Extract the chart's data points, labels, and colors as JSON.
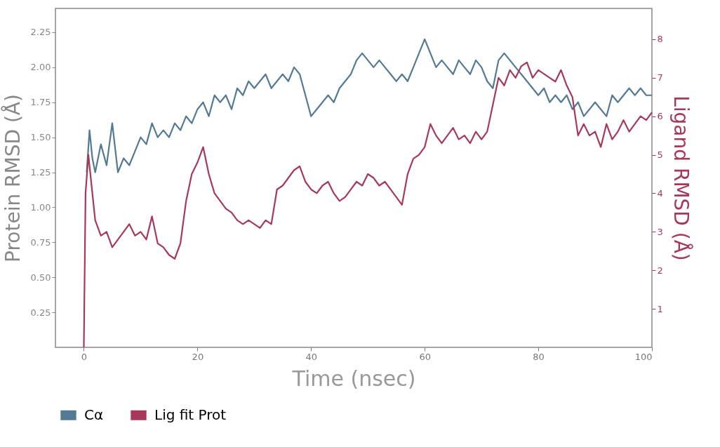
{
  "chart_data": {
    "type": "line",
    "xlabel": "Time (nsec)",
    "ylabel": "Protein RMSD (Å)",
    "y2label": "Ligand RMSD (Å)",
    "xlim": [
      -5,
      100
    ],
    "xticks": [
      0,
      20,
      40,
      60,
      80,
      100
    ],
    "ylim": [
      0,
      2.42
    ],
    "yticks": [
      0.25,
      {
        "value": 0.5,
        "label": "0.50"
      },
      0.75,
      {
        "value": 1,
        "label": "1.00"
      },
      1.25,
      {
        "value": 1.5,
        "label": "1.50"
      },
      1.75,
      {
        "value": 2,
        "label": "2.00"
      },
      2.25
    ],
    "y2lim": [
      0,
      8.8
    ],
    "y2ticks": [
      1,
      2,
      3,
      4,
      5,
      6,
      7,
      8
    ],
    "grid": false,
    "legend": "bottom",
    "marker": "none",
    "line_style": "solid",
    "series": [
      {
        "name": "Cα",
        "color": "#537a94",
        "x": [
          0.5,
          1,
          1.5,
          2,
          3,
          4,
          5,
          6,
          7,
          8,
          9,
          10,
          11,
          12,
          13,
          14,
          15,
          16,
          17,
          18,
          19,
          20,
          21,
          22,
          23,
          24,
          25,
          26,
          27,
          28,
          29,
          30,
          31,
          32,
          33,
          34,
          35,
          36,
          37,
          38,
          39,
          40,
          41,
          42,
          43,
          44,
          45,
          46,
          47,
          48,
          49,
          50,
          51,
          52,
          53,
          54,
          55,
          56,
          57,
          58,
          59,
          60,
          61,
          62,
          63,
          64,
          65,
          66,
          67,
          68,
          69,
          70,
          71,
          72,
          73,
          74,
          75,
          76,
          77,
          78,
          79,
          80,
          81,
          82,
          83,
          84,
          85,
          86,
          87,
          88,
          89,
          90,
          91,
          92,
          93,
          94,
          95,
          96,
          97,
          98,
          99,
          100
        ],
        "values": [
          1.25,
          1.55,
          1.35,
          1.25,
          1.45,
          1.3,
          1.6,
          1.25,
          1.35,
          1.3,
          1.4,
          1.5,
          1.45,
          1.6,
          1.5,
          1.55,
          1.5,
          1.6,
          1.55,
          1.65,
          1.6,
          1.7,
          1.75,
          1.65,
          1.8,
          1.75,
          1.8,
          1.7,
          1.85,
          1.8,
          1.9,
          1.85,
          1.9,
          1.95,
          1.85,
          1.9,
          1.95,
          1.9,
          2.0,
          1.95,
          1.8,
          1.65,
          1.7,
          1.75,
          1.8,
          1.75,
          1.85,
          1.9,
          1.95,
          2.05,
          2.1,
          2.05,
          2.0,
          2.05,
          2.0,
          1.95,
          1.9,
          1.95,
          1.9,
          2.0,
          2.1,
          2.2,
          2.1,
          2.0,
          2.05,
          2.0,
          1.95,
          2.05,
          2.0,
          1.95,
          2.05,
          2.0,
          1.9,
          1.85,
          2.05,
          2.1,
          2.05,
          2.0,
          1.95,
          1.9,
          1.85,
          1.8,
          1.85,
          1.75,
          1.8,
          1.75,
          1.8,
          1.7,
          1.75,
          1.65,
          1.7,
          1.75,
          1.7,
          1.65,
          1.8,
          1.75,
          1.8,
          1.85,
          1.8,
          1.85,
          1.8,
          1.8
        ]
      },
      {
        "name": "Lig fit Prot",
        "color": "#a8385a",
        "axis": "y2",
        "x": [
          0,
          0.3,
          0.8,
          1.5,
          2,
          3,
          4,
          5,
          6,
          7,
          8,
          9,
          10,
          11,
          12,
          13,
          14,
          15,
          16,
          17,
          18,
          19,
          20,
          21,
          22,
          23,
          24,
          25,
          26,
          27,
          28,
          29,
          30,
          31,
          32,
          33,
          34,
          35,
          36,
          37,
          38,
          39,
          40,
          41,
          42,
          43,
          44,
          45,
          46,
          47,
          48,
          49,
          50,
          51,
          52,
          53,
          54,
          55,
          56,
          57,
          58,
          59,
          60,
          61,
          62,
          63,
          64,
          65,
          66,
          67,
          68,
          69,
          70,
          71,
          72,
          73,
          74,
          75,
          76,
          77,
          78,
          79,
          80,
          81,
          82,
          83,
          84,
          85,
          86,
          87,
          88,
          89,
          90,
          91,
          92,
          93,
          94,
          95,
          96,
          97,
          98,
          99,
          100
        ],
        "values": [
          0,
          4.0,
          5.0,
          4.0,
          3.3,
          2.9,
          3.0,
          2.6,
          2.8,
          3.0,
          3.2,
          2.9,
          3.0,
          2.8,
          3.4,
          2.7,
          2.6,
          2.4,
          2.3,
          2.7,
          3.8,
          4.5,
          4.8,
          5.2,
          4.5,
          4.0,
          3.8,
          3.6,
          3.5,
          3.3,
          3.2,
          3.3,
          3.2,
          3.1,
          3.3,
          3.2,
          4.1,
          4.2,
          4.4,
          4.6,
          4.7,
          4.3,
          4.1,
          4.0,
          4.2,
          4.3,
          4.0,
          3.8,
          3.9,
          4.1,
          4.3,
          4.2,
          4.5,
          4.4,
          4.2,
          4.3,
          4.1,
          3.9,
          3.7,
          4.5,
          4.9,
          5.0,
          5.2,
          5.8,
          5.5,
          5.3,
          5.5,
          5.7,
          5.4,
          5.5,
          5.3,
          5.6,
          5.4,
          5.6,
          6.3,
          7.0,
          6.8,
          7.2,
          7.0,
          7.3,
          7.4,
          7.0,
          7.2,
          7.1,
          7.0,
          6.9,
          7.2,
          6.8,
          6.5,
          5.5,
          5.8,
          5.5,
          5.6,
          5.2,
          5.8,
          5.4,
          5.6,
          5.9,
          5.6,
          5.8,
          6.0,
          5.9,
          6.1
        ]
      }
    ]
  }
}
